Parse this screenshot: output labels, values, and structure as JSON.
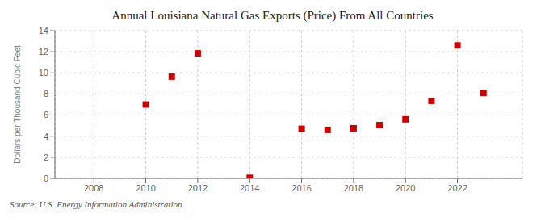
{
  "chart_data": {
    "type": "scatter",
    "title": "Annual Louisiana Natural Gas Exports (Price) From All Countries",
    "ylabel": "Dollars per Thousand Cubic Feet",
    "annotation": "Source: U.S. Energy Information Administration",
    "x": [
      2010,
      2011,
      2012,
      2014,
      2016,
      2017,
      2018,
      2019,
      2020,
      2021,
      2022,
      2023
    ],
    "values": [
      7.0,
      9.65,
      11.85,
      0.05,
      4.7,
      4.6,
      4.75,
      5.05,
      5.6,
      7.35,
      12.6,
      8.1
    ],
    "color": "#cc0000",
    "marker": "square",
    "xlim": [
      2006.5,
      2024.5
    ],
    "ylim": [
      0,
      14
    ],
    "xticks": [
      2008,
      2010,
      2012,
      2014,
      2016,
      2018,
      2020,
      2022
    ],
    "yticks": [
      0,
      2,
      4,
      6,
      8,
      10,
      12,
      14
    ],
    "grid": true
  }
}
